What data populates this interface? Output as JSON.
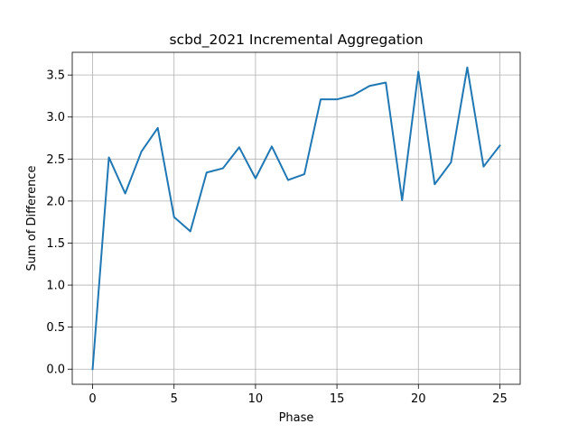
{
  "chart_data": {
    "type": "line",
    "title": "scbd_2021 Incremental Aggregation",
    "xlabel": "Phase",
    "ylabel": "Sum of Difference",
    "xlim": [
      -1.25,
      26.25
    ],
    "ylim": [
      -0.18,
      3.77
    ],
    "xticks": [
      0,
      5,
      10,
      15,
      20,
      25
    ],
    "xtick_labels": [
      "0",
      "5",
      "10",
      "15",
      "20",
      "25"
    ],
    "yticks": [
      0.0,
      0.5,
      1.0,
      1.5,
      2.0,
      2.5,
      3.0,
      3.5
    ],
    "ytick_labels": [
      "0.0",
      "0.5",
      "1.0",
      "1.5",
      "2.0",
      "2.5",
      "3.0",
      "3.5"
    ],
    "grid": true,
    "line_color": "#1f77b4",
    "x": [
      0,
      1,
      2,
      3,
      4,
      5,
      6,
      7,
      8,
      9,
      10,
      11,
      12,
      13,
      14,
      15,
      16,
      17,
      18,
      19,
      20,
      21,
      22,
      23,
      24,
      25
    ],
    "y": [
      0.0,
      2.52,
      2.09,
      2.59,
      2.87,
      1.81,
      1.64,
      2.34,
      2.39,
      2.64,
      2.27,
      2.65,
      2.25,
      2.32,
      3.21,
      3.21,
      3.26,
      3.37,
      3.41,
      2.01,
      3.54,
      2.2,
      2.46,
      3.59,
      2.41,
      2.66
    ]
  }
}
